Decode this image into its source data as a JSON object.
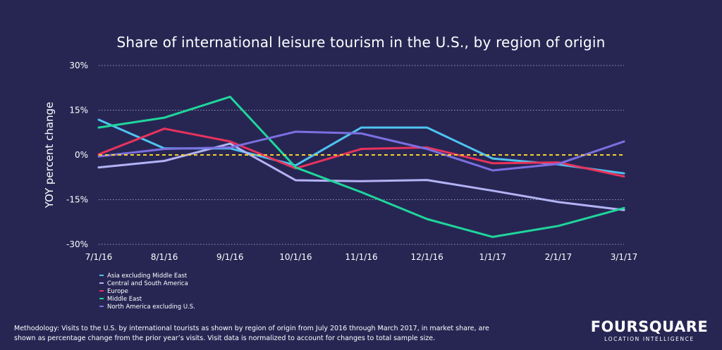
{
  "chart_data": {
    "type": "line",
    "title": "Share of international leisure tourism in the U.S., by region of origin",
    "xlabel": "",
    "ylabel": "YOY percent change",
    "categories": [
      "7/1/16",
      "8/1/16",
      "9/1/16",
      "10/1/16",
      "11/1/16",
      "12/1/16",
      "1/1/17",
      "2/1/17",
      "3/1/17"
    ],
    "ylim": [
      -30,
      30
    ],
    "yticks": [
      -30,
      -15,
      0,
      15,
      30
    ],
    "ytick_labels": [
      "-30%",
      "-15%",
      "0%",
      "15%",
      "30%"
    ],
    "grid": "horizontal dotted",
    "zero_line_color": "#f2d12e",
    "legend_position": "bottom-left",
    "series": [
      {
        "name": "Asia excluding Middle East",
        "color": "#4fc3f0",
        "values": [
          11.8,
          2.2,
          2.2,
          -3.5,
          9.2,
          9.2,
          -1.2,
          -3.2,
          -6.2
        ]
      },
      {
        "name": "Central and South America",
        "color": "#b3b3f5",
        "values": [
          -4.2,
          -2.0,
          3.8,
          -8.5,
          -8.8,
          -8.4,
          -12.0,
          -15.8,
          -18.5
        ]
      },
      {
        "name": "Europe",
        "color": "#e8335c",
        "values": [
          0.2,
          8.8,
          4.5,
          -4.5,
          2.0,
          2.5,
          -2.8,
          -2.5,
          -7.2
        ]
      },
      {
        "name": "Middle East",
        "color": "#1fd69b",
        "values": [
          9.2,
          12.5,
          19.5,
          -4.2,
          -12.5,
          -21.5,
          -27.5,
          -23.8,
          -17.8
        ]
      },
      {
        "name": "North America excluding U.S.",
        "color": "#7c6fe0",
        "values": [
          -0.5,
          2.0,
          2.5,
          7.8,
          7.2,
          2.0,
          -5.2,
          -3.0,
          4.5
        ]
      }
    ]
  },
  "footer": {
    "methodology_line1": "Methodology: Visits to the U.S. by international tourists as shown by region of origin from July 2016 through March 2017, in market share, are",
    "methodology_line2": "shown as percentage change from the prior year’s visits. Visit data is normalized to account for changes to total sample size."
  },
  "brand": {
    "name": "FOURSQUARE",
    "tagline": "LOCATION INTELLIGENCE"
  }
}
